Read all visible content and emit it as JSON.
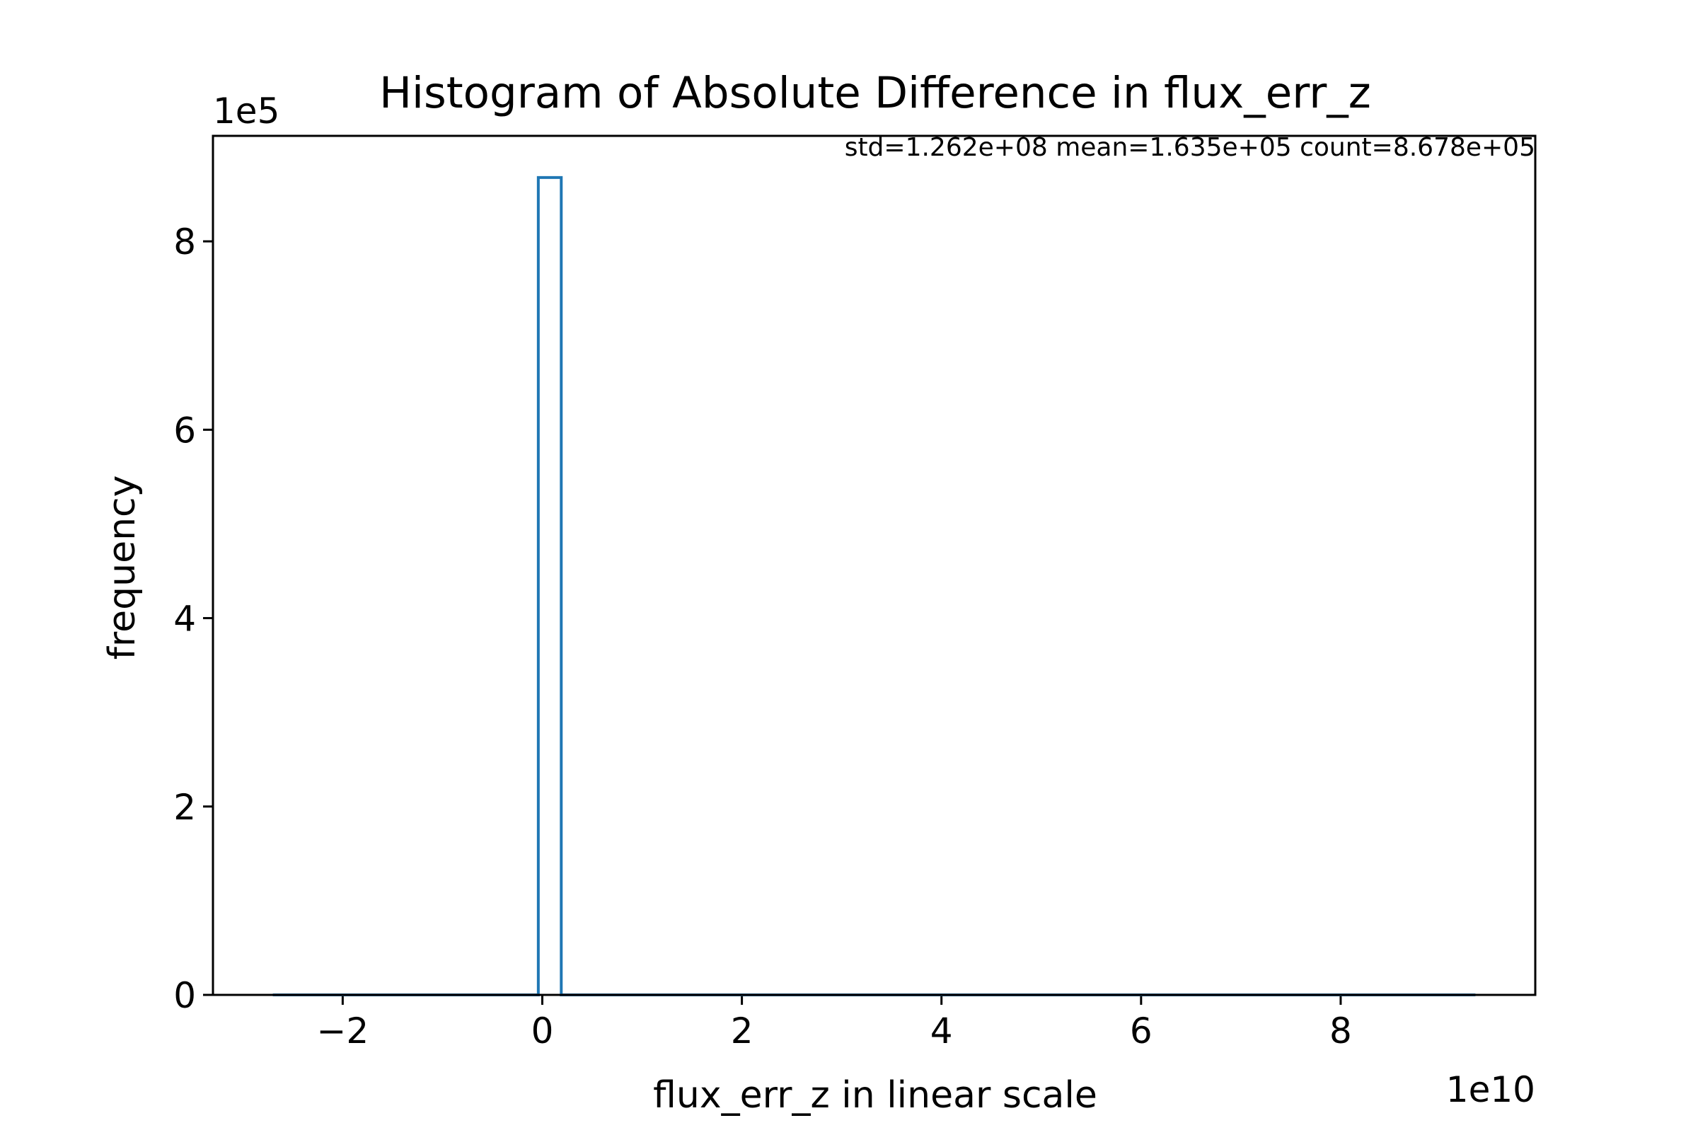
{
  "chart_data": {
    "type": "bar",
    "title": "Histogram of Absolute Difference in flux_err_z",
    "xlabel": "flux_err_z in linear scale",
    "ylabel": "frequency",
    "annotation": "std=1.262e+08 mean=1.635e+05 count=8.678e+05",
    "x_offset_label": "1e10",
    "y_offset_label": "1e5",
    "xlim": [
      -3.3,
      9.95
    ],
    "ylim": [
      0,
      9.12
    ],
    "x_ticks": [
      {
        "value": -2,
        "label": "−2"
      },
      {
        "value": 0,
        "label": "0"
      },
      {
        "value": 2,
        "label": "2"
      },
      {
        "value": 4,
        "label": "4"
      },
      {
        "value": 6,
        "label": "6"
      },
      {
        "value": 8,
        "label": "8"
      }
    ],
    "y_ticks": [
      {
        "value": 0,
        "label": "0"
      },
      {
        "value": 2,
        "label": "2"
      },
      {
        "value": 4,
        "label": "4"
      },
      {
        "value": 6,
        "label": "6"
      },
      {
        "value": 8,
        "label": "8"
      }
    ],
    "histogram": {
      "range": [
        -2.7,
        9.35
      ],
      "bins": [
        {
          "start": -0.04,
          "end": 0.19,
          "count": 8.678
        }
      ]
    },
    "grid": false,
    "color": "#1f77b4"
  }
}
